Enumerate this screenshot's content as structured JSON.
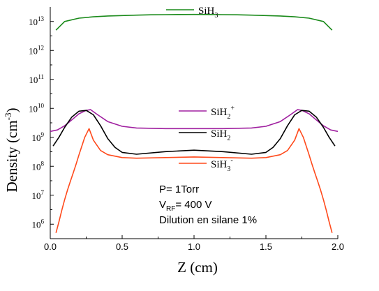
{
  "chart_data": {
    "type": "line",
    "xlabel": "Z (cm)",
    "ylabel": {
      "main": "Density (cm",
      "sup": "-3",
      "close": ")"
    },
    "xlim": [
      0.0,
      2.0
    ],
    "ylim_log10": [
      5.5,
      13.5
    ],
    "yscale": "log",
    "x_ticks": [
      "0.0",
      "0.5",
      "1.0",
      "1.5",
      "2.0"
    ],
    "y_ticks": [
      {
        "base": "10",
        "exp": "6"
      },
      {
        "base": "10",
        "exp": "7"
      },
      {
        "base": "10",
        "exp": "8"
      },
      {
        "base": "10",
        "exp": "9"
      },
      {
        "base": "10",
        "exp": "10"
      },
      {
        "base": "10",
        "exp": "11"
      },
      {
        "base": "10",
        "exp": "12"
      },
      {
        "base": "10",
        "exp": "13"
      }
    ],
    "grid": false,
    "series": [
      {
        "name": "SiH3",
        "label": {
          "base": "SiH",
          "sub": "3",
          "sup": ""
        },
        "color": "#1a8a1a",
        "x": [
          0.04,
          0.1,
          0.2,
          0.3,
          0.4,
          0.5,
          0.6,
          0.7,
          0.8,
          0.9,
          1.0,
          1.1,
          1.2,
          1.3,
          1.4,
          1.5,
          1.6,
          1.7,
          1.8,
          1.9,
          1.96
        ],
        "y": [
          5000000000000.0,
          10000000000000.0,
          13000000000000.0,
          14500000000000.0,
          15500000000000.0,
          16000000000000.0,
          16500000000000.0,
          17000000000000.0,
          17200000000000.0,
          17400000000000.0,
          17500000000000.0,
          17400000000000.0,
          17200000000000.0,
          17000000000000.0,
          16500000000000.0,
          16000000000000.0,
          15500000000000.0,
          14500000000000.0,
          13000000000000.0,
          10000000000000.0,
          5000000000000.0
        ]
      },
      {
        "name": "SiH2+",
        "label": {
          "base": "SiH",
          "sub": "2",
          "sup": "+"
        },
        "color": "#a020a0",
        "x": [
          0.0,
          0.05,
          0.1,
          0.15,
          0.2,
          0.25,
          0.28,
          0.33,
          0.4,
          0.5,
          0.6,
          0.8,
          1.0,
          1.2,
          1.4,
          1.5,
          1.6,
          1.67,
          1.72,
          1.75,
          1.8,
          1.85,
          1.9,
          1.95,
          2.0
        ],
        "y": [
          1600000000.0,
          1800000000.0,
          2500000000.0,
          4000000000.0,
          6500000000.0,
          8500000000.0,
          9000000000.0,
          6000000000.0,
          3500000000.0,
          2400000000.0,
          2100000000.0,
          2000000000.0,
          2000000000.0,
          2000000000.0,
          2100000000.0,
          2400000000.0,
          3500000000.0,
          6000000000.0,
          9000000000.0,
          8500000000.0,
          6500000000.0,
          4000000000.0,
          2500000000.0,
          1800000000.0,
          1600000000.0
        ]
      },
      {
        "name": "SiH2",
        "label": {
          "base": "SiH",
          "sub": "2",
          "sup": ""
        },
        "color": "#000000",
        "x": [
          0.02,
          0.06,
          0.1,
          0.15,
          0.2,
          0.25,
          0.3,
          0.35,
          0.4,
          0.45,
          0.5,
          0.6,
          0.8,
          1.0,
          1.2,
          1.4,
          1.5,
          1.55,
          1.6,
          1.65,
          1.7,
          1.75,
          1.8,
          1.85,
          1.9,
          1.94,
          1.98
        ],
        "y": [
          500000000.0,
          1000000000.0,
          2200000000.0,
          5000000000.0,
          8000000000.0,
          8500000000.0,
          6000000000.0,
          2500000000.0,
          900000000.0,
          450000000.0,
          300000000.0,
          260000000.0,
          320000000.0,
          360000000.0,
          320000000.0,
          260000000.0,
          300000000.0,
          450000000.0,
          900000000.0,
          2500000000.0,
          6000000000.0,
          8500000000.0,
          8000000000.0,
          5000000000.0,
          2200000000.0,
          1000000000.0,
          500000000.0
        ]
      },
      {
        "name": "SiH3-",
        "label": {
          "base": "SiH",
          "sub": "3",
          "sup": "-"
        },
        "color": "#ff4a1c",
        "x": [
          0.04,
          0.06,
          0.08,
          0.1,
          0.12,
          0.14,
          0.16,
          0.18,
          0.2,
          0.22,
          0.24,
          0.27,
          0.3,
          0.35,
          0.4,
          0.5,
          0.6,
          0.8,
          1.0,
          1.2,
          1.4,
          1.5,
          1.6,
          1.65,
          1.7,
          1.73,
          1.76,
          1.78,
          1.8,
          1.82,
          1.84,
          1.86,
          1.88,
          1.9,
          1.92,
          1.94,
          1.96
        ],
        "y": [
          500000.0,
          1200000.0,
          3000000.0,
          7000000.0,
          15000000.0,
          30000000.0,
          60000000.0,
          120000000.0,
          250000000.0,
          500000000.0,
          1000000000.0,
          2000000000.0,
          800000000.0,
          350000000.0,
          250000000.0,
          200000000.0,
          190000000.0,
          200000000.0,
          210000000.0,
          200000000.0,
          190000000.0,
          200000000.0,
          250000000.0,
          350000000.0,
          800000000.0,
          2000000000.0,
          1000000000.0,
          500000000.0,
          250000000.0,
          120000000.0,
          60000000.0,
          30000000.0,
          15000000.0,
          7000000.0,
          3000000.0,
          1200000.0,
          500000.0
        ]
      }
    ],
    "annotations": [
      {
        "pre": "P= 1Torr",
        "sub": "",
        "post": ""
      },
      {
        "pre": "V",
        "sub": "RF",
        "post": "= 400 V"
      },
      {
        "pre": "Dilution en silane 1%",
        "sub": "",
        "post": ""
      }
    ]
  }
}
